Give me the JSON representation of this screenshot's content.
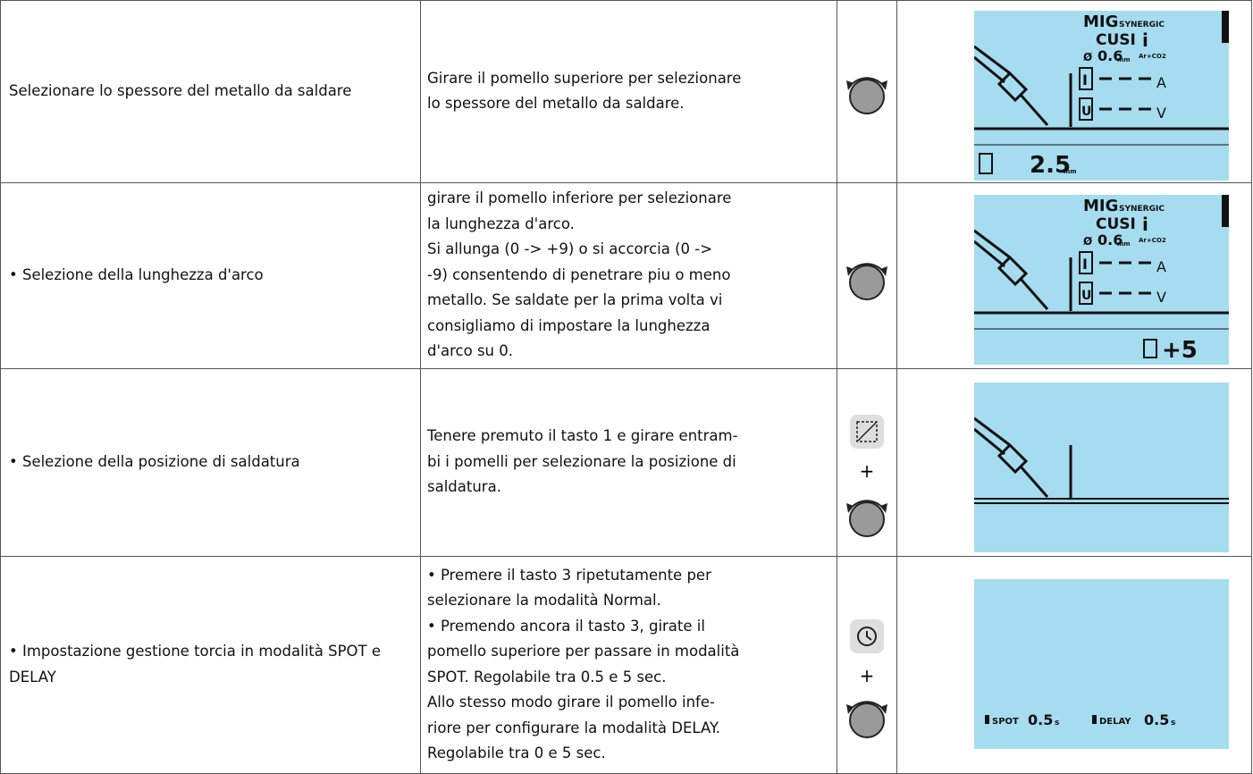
{
  "table": {
    "rows": [
      {
        "step": "Selezionare lo spessore del metallo da saldare",
        "instructions": [
          "Girare il pomello superiore per selezionare",
          "lo spessore del metallo da saldare."
        ],
        "display": {
          "mode": "MIG",
          "synergic": "SYNERGIC",
          "material": "CUSI",
          "info": "i",
          "diameter_symbol": "Ø",
          "diameter": "0.6",
          "diameter_unit": "mm",
          "gas": "Ar+CO2",
          "current_label": "I",
          "current_unit": "A",
          "voltage_label": "U",
          "voltage_unit": "V",
          "value": "2.5",
          "value_unit": "mm"
        }
      },
      {
        "step": "• Selezione della lunghezza d'arco",
        "instructions": [
          "girare il pomello inferiore per selezionare",
          "la lunghezza d'arco.",
          "Si allunga (0 -> +9) o si accorcia (0 ->",
          "-9) consentendo di penetrare piu o meno",
          "metallo. Se saldate per la prima volta vi",
          "consigliamo di impostare la lunghezza",
          "d'arco su 0."
        ],
        "display": {
          "mode": "MIG",
          "synergic": "SYNERGIC",
          "material": "CUSI",
          "info": "i",
          "diameter_symbol": "Ø",
          "diameter": "0.6",
          "diameter_unit": "mm",
          "gas": "Ar+CO2",
          "current_label": "I",
          "current_unit": "A",
          "voltage_label": "U",
          "voltage_unit": "V",
          "value": "+5"
        }
      },
      {
        "step": "• Selezione della posizione di saldatura",
        "instructions": [
          "Tenere premuto il tasto 1 e girare entram-",
          "bi i pomelli per selezionare la posizione di",
          "saldatura."
        ],
        "plus": "+"
      },
      {
        "step": "• Impostazione gestione torcia in modalità SPOT e DELAY",
        "instructions": [
          "• Premere il tasto 3 ripetutamente per",
          "selezionare la modalità Normal.",
          "• Premendo ancora il tasto 3, girate il",
          "pomello superiore per passare in modalità",
          "SPOT. Regolabile tra 0.5 e 5 sec.",
          "Allo stesso modo girare il pomello infe-",
          "riore per configurare la modalità DELAY.",
          "Regolabile tra 0 e 5 sec."
        ],
        "plus": "+",
        "display": {
          "spot_label": "SPOT",
          "spot_value": "0.5",
          "spot_unit": "s",
          "delay_label": "DELAY",
          "delay_value": "0.5",
          "delay_unit": "s"
        }
      }
    ]
  }
}
